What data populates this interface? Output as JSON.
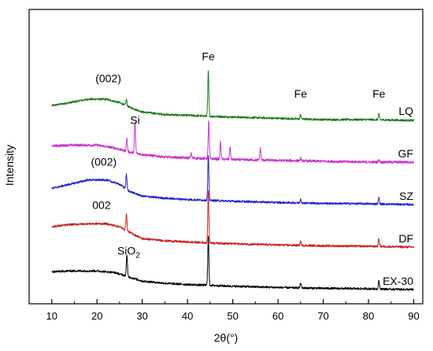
{
  "chart_data": {
    "type": "line",
    "xlabel": "2θ(°)",
    "ylabel": "Intensity",
    "xlim": [
      5,
      92
    ],
    "xticks": [
      10,
      20,
      30,
      40,
      50,
      60,
      70,
      80,
      90
    ],
    "y_ticks_shown": false,
    "series": [
      {
        "name": "LQ",
        "color": "#1a7a1a",
        "offset": 4,
        "noise": 0.05,
        "baseline": [
          [
            10,
            0.33
          ],
          [
            14,
            0.4
          ],
          [
            18,
            0.48
          ],
          [
            22,
            0.48
          ],
          [
            25,
            0.4
          ],
          [
            27,
            0.3
          ],
          [
            30,
            0.18
          ],
          [
            35,
            0.12
          ],
          [
            40,
            0.1
          ],
          [
            50,
            0.06
          ],
          [
            60,
            0.03
          ],
          [
            70,
            0.0
          ],
          [
            80,
            0.0
          ],
          [
            90,
            -0.02
          ]
        ],
        "peaks": [
          [
            26.5,
            0.15
          ],
          [
            44.6,
            1.05
          ],
          [
            65.0,
            0.1
          ],
          [
            82.3,
            0.14
          ]
        ]
      },
      {
        "name": "GF",
        "color": "#cc33cc",
        "offset": 3,
        "noise": 0.06,
        "baseline": [
          [
            10,
            0.38
          ],
          [
            14,
            0.4
          ],
          [
            20,
            0.4
          ],
          [
            24,
            0.33
          ],
          [
            27,
            0.24
          ],
          [
            30,
            0.18
          ],
          [
            35,
            0.12
          ],
          [
            40,
            0.1
          ],
          [
            50,
            0.06
          ],
          [
            60,
            0.04
          ],
          [
            70,
            0.02
          ],
          [
            80,
            0.0
          ],
          [
            90,
            0.0
          ]
        ],
        "peaks": [
          [
            26.6,
            0.3
          ],
          [
            28.4,
            0.72
          ],
          [
            40.8,
            0.12
          ],
          [
            44.7,
            0.9
          ],
          [
            47.3,
            0.4
          ],
          [
            49.4,
            0.3
          ],
          [
            56.1,
            0.28
          ],
          [
            65.0,
            0.06
          ],
          [
            82.3,
            0.06
          ]
        ]
      },
      {
        "name": "SZ",
        "color": "#2020cc",
        "offset": 2,
        "noise": 0.05,
        "baseline": [
          [
            10,
            0.38
          ],
          [
            14,
            0.48
          ],
          [
            18,
            0.58
          ],
          [
            22,
            0.58
          ],
          [
            25,
            0.48
          ],
          [
            27,
            0.32
          ],
          [
            30,
            0.2
          ],
          [
            35,
            0.15
          ],
          [
            40,
            0.12
          ],
          [
            50,
            0.08
          ],
          [
            60,
            0.05
          ],
          [
            70,
            0.03
          ],
          [
            80,
            0.02
          ],
          [
            90,
            0.0
          ]
        ],
        "peaks": [
          [
            26.5,
            0.35
          ],
          [
            44.6,
            1.05
          ],
          [
            65.0,
            0.1
          ],
          [
            82.3,
            0.16
          ]
        ]
      },
      {
        "name": "DF",
        "color": "#cc2020",
        "offset": 1,
        "noise": 0.05,
        "baseline": [
          [
            10,
            0.48
          ],
          [
            14,
            0.53
          ],
          [
            18,
            0.55
          ],
          [
            22,
            0.55
          ],
          [
            25,
            0.48
          ],
          [
            27,
            0.36
          ],
          [
            30,
            0.2
          ],
          [
            35,
            0.15
          ],
          [
            40,
            0.12
          ],
          [
            50,
            0.08
          ],
          [
            60,
            0.05
          ],
          [
            70,
            0.03
          ],
          [
            80,
            0.02
          ],
          [
            90,
            0.0
          ]
        ],
        "peaks": [
          [
            26.5,
            0.4
          ],
          [
            44.6,
            1.2
          ],
          [
            65.0,
            0.1
          ],
          [
            82.3,
            0.18
          ]
        ]
      },
      {
        "name": "EX-30",
        "color": "#000000",
        "offset": 0,
        "noise": 0.05,
        "baseline": [
          [
            10,
            0.42
          ],
          [
            14,
            0.44
          ],
          [
            20,
            0.44
          ],
          [
            24,
            0.4
          ],
          [
            27,
            0.3
          ],
          [
            30,
            0.2
          ],
          [
            35,
            0.15
          ],
          [
            40,
            0.12
          ],
          [
            50,
            0.08
          ],
          [
            60,
            0.05
          ],
          [
            70,
            0.03
          ],
          [
            80,
            0.02
          ],
          [
            90,
            0.0
          ]
        ],
        "peaks": [
          [
            26.6,
            0.5
          ],
          [
            44.6,
            1.15
          ],
          [
            65.0,
            0.12
          ],
          [
            82.3,
            0.2
          ]
        ]
      }
    ],
    "annotations": [
      {
        "text": "(002)",
        "x": 22.5,
        "level": 4.88
      },
      {
        "text": "Fe",
        "x": 44.6,
        "level": 5.4
      },
      {
        "text": "Fe",
        "x": 65.0,
        "level": 4.52
      },
      {
        "text": "Fe",
        "x": 82.3,
        "level": 4.52
      },
      {
        "text": "Si",
        "x": 28.4,
        "level": 3.9
      },
      {
        "text": "(002)",
        "x": 21.5,
        "level": 2.92
      },
      {
        "text": "002",
        "x": 21.0,
        "level": 1.9
      },
      {
        "text": "SiO",
        "sub": "2",
        "x": 27.0,
        "level": 0.82
      }
    ]
  }
}
